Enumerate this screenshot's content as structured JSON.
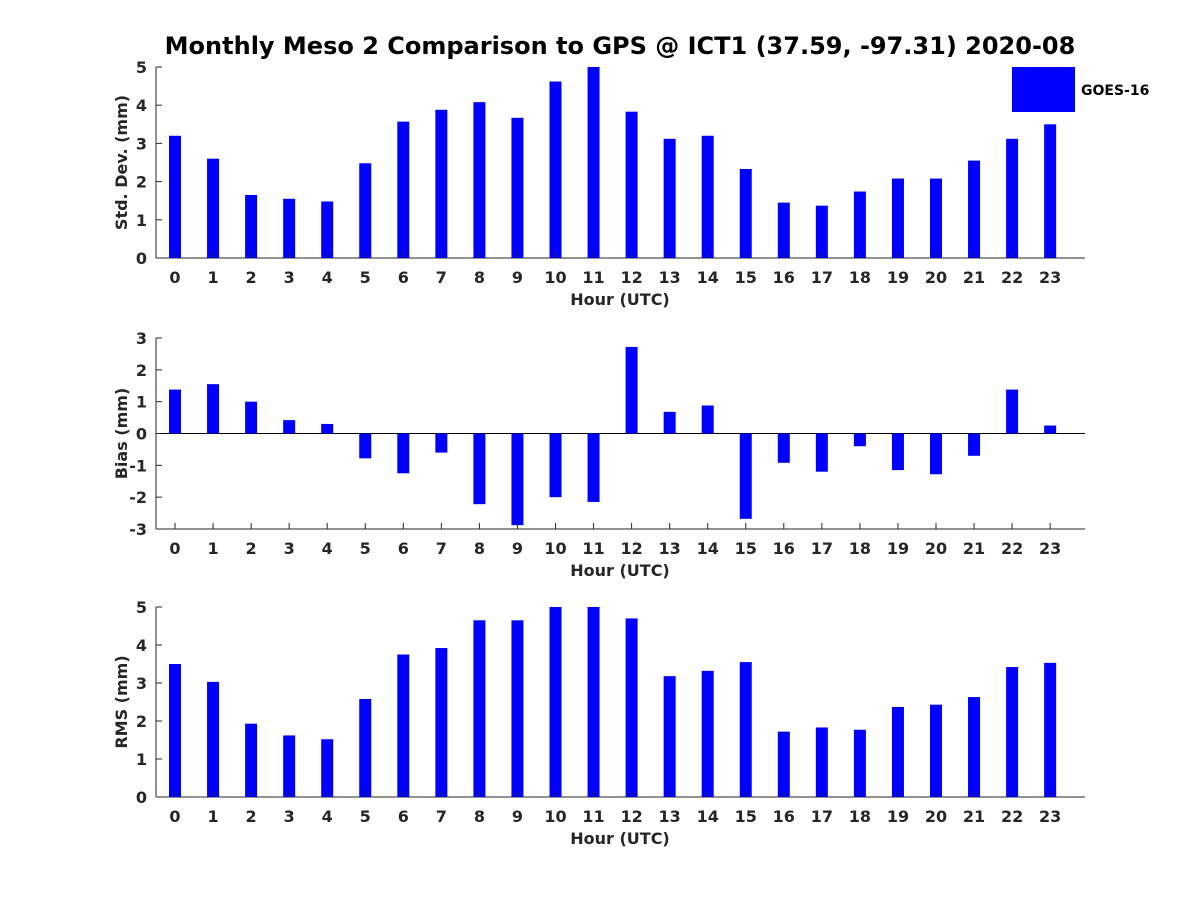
{
  "figure": {
    "title": "Monthly Meso 2 Comparison to GPS @ ICT1 (37.59, -97.31) 2020-08"
  },
  "legend": {
    "label": "GOES-16",
    "color": "#0000ff",
    "placement": "top-right"
  },
  "chart_data": [
    {
      "type": "bar",
      "categories": [
        "0",
        "1",
        "2",
        "3",
        "4",
        "5",
        "6",
        "7",
        "8",
        "9",
        "10",
        "11",
        "12",
        "13",
        "14",
        "15",
        "16",
        "17",
        "18",
        "19",
        "20",
        "21",
        "22",
        "23"
      ],
      "series": [
        {
          "name": "GOES-16",
          "color": "#0000ff",
          "values": [
            3.2,
            2.6,
            1.65,
            1.55,
            1.48,
            2.48,
            3.57,
            3.88,
            4.08,
            3.67,
            4.62,
            5.0,
            3.83,
            3.12,
            3.2,
            2.33,
            1.45,
            1.37,
            1.74,
            2.08,
            2.08,
            2.55,
            3.12,
            3.5
          ]
        }
      ],
      "xlabel": "Hour (UTC)",
      "ylabel": "Std. Dev. (mm)",
      "ylim": [
        0,
        5
      ],
      "yticks": [
        0,
        1,
        2,
        3,
        4,
        5
      ],
      "grid": false
    },
    {
      "type": "bar",
      "categories": [
        "0",
        "1",
        "2",
        "3",
        "4",
        "5",
        "6",
        "7",
        "8",
        "9",
        "10",
        "11",
        "12",
        "13",
        "14",
        "15",
        "16",
        "17",
        "18",
        "19",
        "20",
        "21",
        "22",
        "23"
      ],
      "series": [
        {
          "name": "GOES-16",
          "color": "#0000ff",
          "values": [
            1.38,
            1.55,
            1.0,
            0.42,
            0.3,
            -0.78,
            -1.25,
            -0.6,
            -2.22,
            -2.88,
            -2.0,
            -2.15,
            2.72,
            0.68,
            0.88,
            -2.68,
            -0.92,
            -1.2,
            -0.4,
            -1.15,
            -1.28,
            -0.7,
            1.38,
            0.25
          ]
        }
      ],
      "xlabel": "Hour (UTC)",
      "ylabel": "Bias (mm)",
      "ylim": [
        -3,
        3
      ],
      "yticks": [
        -3,
        -2,
        -1,
        0,
        1,
        2,
        3
      ],
      "grid": false
    },
    {
      "type": "bar",
      "categories": [
        "0",
        "1",
        "2",
        "3",
        "4",
        "5",
        "6",
        "7",
        "8",
        "9",
        "10",
        "11",
        "12",
        "13",
        "14",
        "15",
        "16",
        "17",
        "18",
        "19",
        "20",
        "21",
        "22",
        "23"
      ],
      "series": [
        {
          "name": "GOES-16",
          "color": "#0000ff",
          "values": [
            3.5,
            3.03,
            1.93,
            1.62,
            1.52,
            2.58,
            3.75,
            3.92,
            4.65,
            4.65,
            5.0,
            5.0,
            4.7,
            3.18,
            3.32,
            3.55,
            1.72,
            1.83,
            1.77,
            2.37,
            2.43,
            2.63,
            3.42,
            3.53
          ]
        }
      ],
      "xlabel": "Hour (UTC)",
      "ylabel": "RMS (mm)",
      "ylim": [
        0,
        5
      ],
      "yticks": [
        0,
        1,
        2,
        3,
        4,
        5
      ],
      "grid": false
    }
  ]
}
